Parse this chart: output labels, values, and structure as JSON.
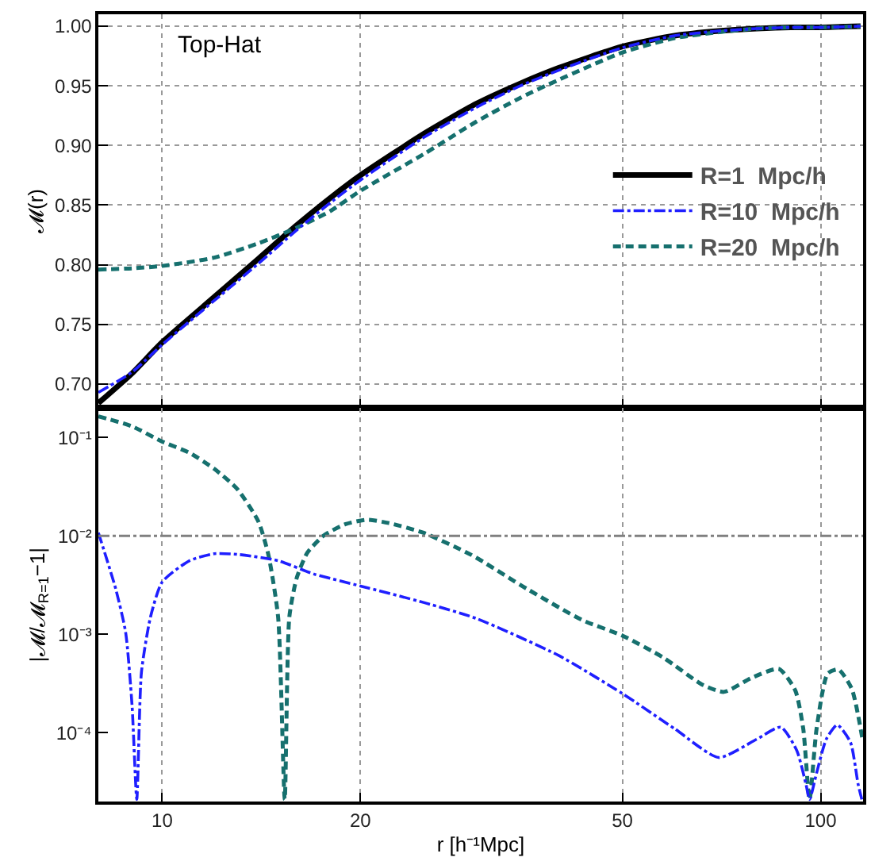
{
  "chart_data": [
    {
      "type": "line",
      "ylabel": "𝓜(r)",
      "annotations": [
        "Top-Hat"
      ],
      "log": "x",
      "grid": true,
      "legend": "right",
      "tick_labels": "y",
      "x": [
        8,
        9,
        10,
        12,
        14,
        16,
        18,
        20,
        25,
        30,
        35,
        40,
        50,
        60,
        70,
        80,
        90,
        100,
        115
      ],
      "xlim": [
        8,
        116
      ],
      "xticks": [
        10,
        20,
        50,
        100
      ],
      "ylim": [
        0.68,
        1.01
      ],
      "yticks": [
        {
          "value": 0.7,
          "label": "0.70"
        },
        {
          "value": 0.75,
          "label": "0.75"
        },
        {
          "value": 0.8,
          "label": "0.80"
        },
        {
          "value": 0.85,
          "label": "0.85"
        },
        {
          "value": 0.9,
          "label": "0.90"
        },
        {
          "value": 0.95,
          "label": "0.95"
        },
        {
          "value": 1.0,
          "label": "1.00"
        }
      ],
      "series": [
        {
          "name": "R=1  Mpc/h",
          "color": "#000000",
          "line_style": "solid",
          "values": [
            0.684,
            0.709,
            0.735,
            0.773,
            0.805,
            0.833,
            0.856,
            0.875,
            0.91,
            0.935,
            0.952,
            0.965,
            0.983,
            0.992,
            0.996,
            0.998,
            0.999,
            0.999,
            1.0
          ]
        },
        {
          "name": "R=10  Mpc/h",
          "color": "#1f1fff",
          "line_style": "dashdot",
          "values": [
            0.693,
            0.71,
            0.733,
            0.77,
            0.801,
            0.829,
            0.852,
            0.871,
            0.907,
            0.932,
            0.95,
            0.963,
            0.982,
            0.992,
            0.996,
            0.998,
            0.999,
            0.999,
            1.0
          ]
        },
        {
          "name": "R=20  Mpc/h",
          "color": "#16706e",
          "line_style": "dashed",
          "values": [
            0.796,
            0.797,
            0.799,
            0.806,
            0.818,
            0.831,
            0.845,
            0.862,
            0.893,
            0.92,
            0.94,
            0.955,
            0.978,
            0.99,
            0.995,
            0.998,
            0.999,
            0.999,
            1.0
          ]
        }
      ]
    },
    {
      "type": "line",
      "xlabel": "r [h⁻¹Mpc]",
      "ylabel": "|𝓜/𝓜$_{R=1}$−1|",
      "log": "xy",
      "grid": "x",
      "legend": false,
      "xlim": [
        8,
        116
      ],
      "xticks": [
        10,
        20,
        50,
        100
      ],
      "ylim": [
        2e-05,
        0.2
      ],
      "yticks": [
        {
          "value": 0.0001,
          "label": "10⁻⁴"
        },
        {
          "value": 0.001,
          "label": "10⁻³"
        },
        {
          "value": 0.01,
          "label": "10⁻²"
        },
        {
          "value": 0.1,
          "label": "10⁻¹"
        }
      ],
      "ref_lines": [
        {
          "axis": "y",
          "value": 0.01,
          "color": "#808080",
          "line_style": "dashdot"
        }
      ],
      "series": [
        {
          "color": "#1f1fff",
          "line_style": "dashdot",
          "x": [
            8,
            8.5,
            8.8,
            9.0,
            9.15,
            9.3,
            9.6,
            10,
            11,
            12,
            13,
            15,
            17,
            20,
            25,
            30,
            40,
            50,
            60,
            70,
            80,
            87,
            92,
            95,
            96.2,
            98.6,
            102,
            106,
            111,
            114,
            115.5
          ],
          "values": [
            0.0108,
            0.0029,
            0.00105,
            0.00019,
            2.1e-05,
            0.00041,
            0.0015,
            0.0034,
            0.0056,
            0.0066,
            0.0065,
            0.0056,
            0.0041,
            0.0031,
            0.0021,
            0.00145,
            0.00061,
            0.00025,
            0.00011,
            5.6e-05,
            8.6e-05,
            0.000114,
            6.6e-05,
            3e-05,
            2.1e-05,
            3.9e-05,
            8.6e-05,
            0.00012,
            8e-05,
            3e-05,
            2.1e-05
          ]
        },
        {
          "color": "#16706e",
          "line_style": "dashed",
          "x": [
            8,
            9,
            10,
            11,
            12,
            13,
            14,
            14.5,
            15,
            15.35,
            15.6,
            16.0,
            16.6,
            17.6,
            19.0,
            20.5,
            22.1,
            24.9,
            29.5,
            35.8,
            43.4,
            50,
            57.7,
            66,
            71.3,
            78.5,
            86.4,
            91.5,
            94.1,
            96.2,
            98.6,
            102.5,
            106.4,
            111.5,
            115.8
          ],
          "values": [
            0.164,
            0.13,
            0.091,
            0.07,
            0.048,
            0.03,
            0.014,
            0.0064,
            0.0015,
            2.1e-05,
            0.0015,
            0.0037,
            0.0067,
            0.0101,
            0.0132,
            0.0146,
            0.0135,
            0.0108,
            0.0064,
            0.0029,
            0.0014,
            0.00097,
            0.00058,
            0.00031,
            0.00026,
            0.00036,
            0.000445,
            0.00027,
            0.00011,
            2.1e-05,
            0.00011,
            0.0004,
            0.00044,
            0.00028,
            8.5e-05
          ]
        }
      ]
    }
  ]
}
